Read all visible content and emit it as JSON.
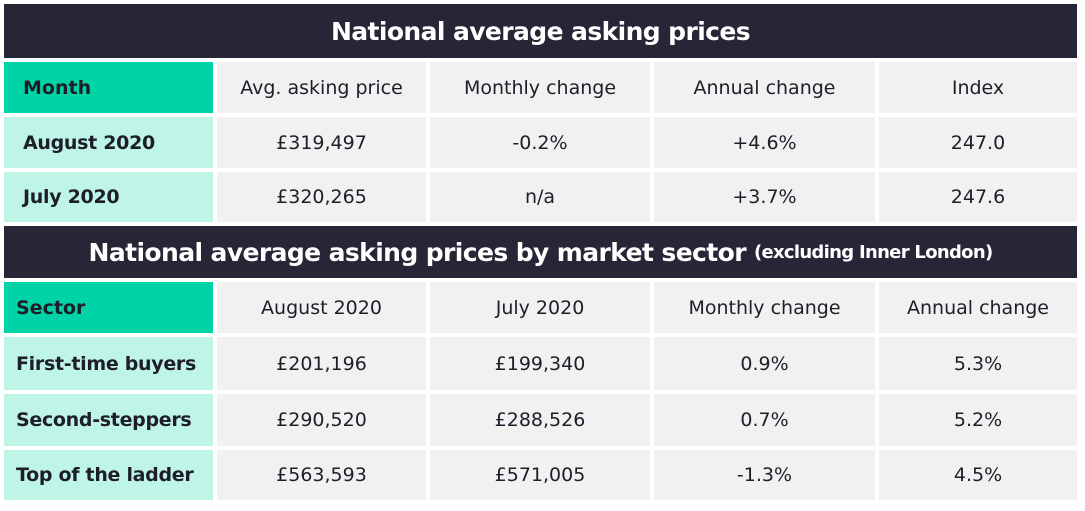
{
  "chart_data": [
    {
      "type": "table",
      "title": "National average asking prices",
      "columns": [
        "Month",
        "Avg. asking price",
        "Monthly change",
        "Annual change",
        "Index"
      ],
      "rows": [
        [
          "August 2020",
          "£319,497",
          "-0.2%",
          "+4.6%",
          "247.0"
        ],
        [
          "July 2020",
          "£320,265",
          "n/a",
          "+3.7%",
          "247.6"
        ]
      ]
    },
    {
      "type": "table",
      "title": "National average asking prices by market sector",
      "subtitle": "(excluding Inner London)",
      "columns": [
        "Sector",
        "August 2020",
        "July 2020",
        "Monthly change",
        "Annual change"
      ],
      "rows": [
        [
          "First-time buyers",
          "£201,196",
          "£199,340",
          "0.9%",
          "5.3%"
        ],
        [
          "Second-steppers",
          "£290,520",
          "£288,526",
          "0.7%",
          "5.2%"
        ],
        [
          "Top of the ladder",
          "£563,593",
          "£571,005",
          "-1.3%",
          "4.5%"
        ]
      ]
    }
  ],
  "colors": {
    "title_bar": "#262637",
    "header_accent": "#00d3a5",
    "row_label_bg": "#bff5e6",
    "cell_bg": "#f1f1f1"
  }
}
